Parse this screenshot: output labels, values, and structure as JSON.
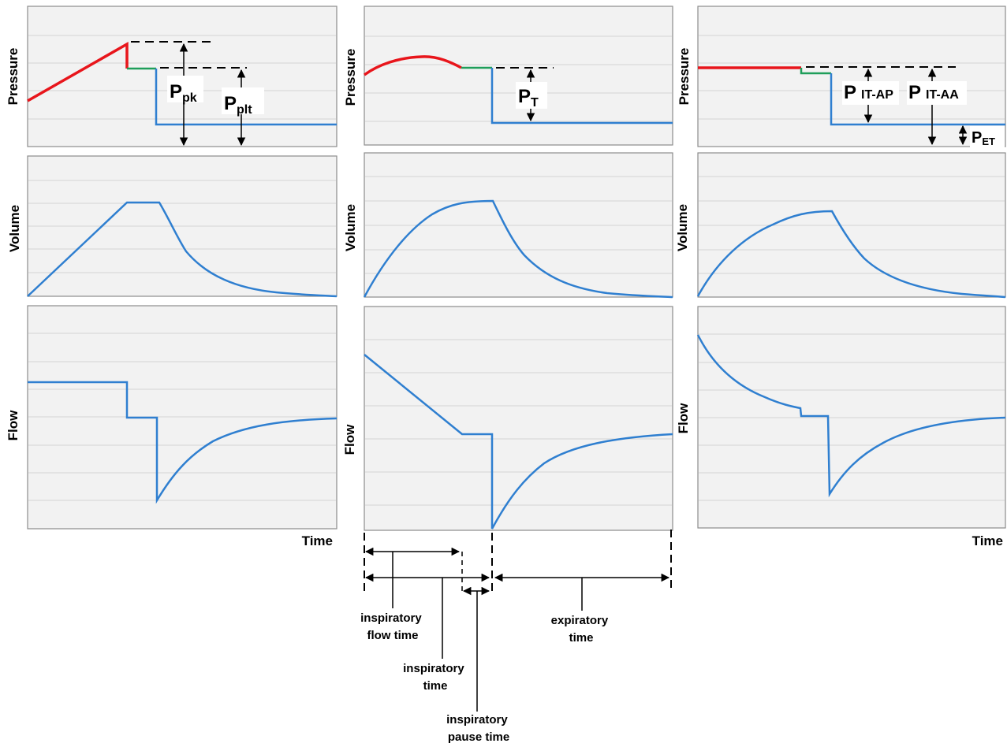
{
  "panels": {
    "pressure_label": "Pressure",
    "volume_label": "Volume",
    "flow_label": "Flow",
    "time_label": "Time"
  },
  "params": {
    "ppk": {
      "main": "P",
      "sub": "pk"
    },
    "pplt": {
      "main": "P",
      "sub": "plt"
    },
    "pt": {
      "main": "P",
      "sub": "T"
    },
    "pit_ap": {
      "main": "P",
      "sub": "IT-AP"
    },
    "pit_aa": {
      "main": "P",
      "sub": "IT-AA"
    },
    "pet": {
      "main": "P",
      "sub": "ET"
    }
  },
  "timing": {
    "insp_flow_time": [
      "inspiratory",
      "flow time"
    ],
    "insp_time": [
      "inspiratory",
      "time"
    ],
    "insp_pause_time": [
      "inspiratory",
      "pause time"
    ],
    "exp_time": [
      "expiratory",
      "time"
    ]
  },
  "colors": {
    "panel_bg": "#f2f2f2",
    "panel_border": "#8c8c8c",
    "grid": "#d4d4d4",
    "waveform": "#2f7fd0",
    "flow_phase": "#e8151b",
    "pause_phase": "#1f9e5a"
  }
}
